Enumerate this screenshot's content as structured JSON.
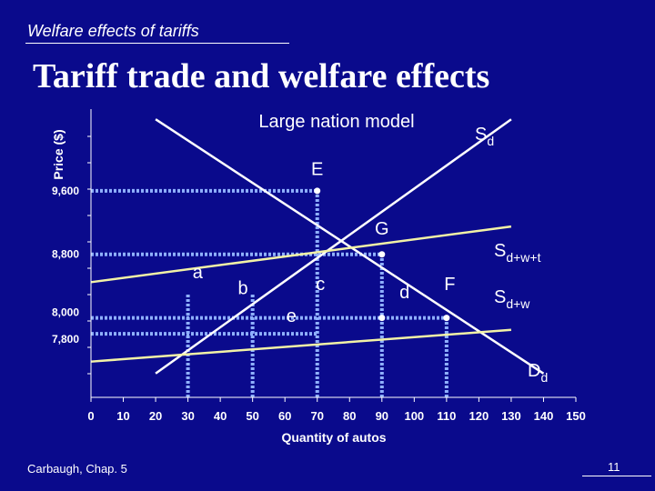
{
  "slide": {
    "header": "Welfare effects of tariffs",
    "title": "Tariff trade and welfare effects",
    "footer": "Carbaugh, Chap. 5",
    "page_number": "11"
  },
  "colors": {
    "background": "#0a0a8c",
    "curve_line": "#ffffff",
    "price_line": "#f2f2a6",
    "dotted_guides": "#8fb0ff",
    "text": "#ffffff"
  },
  "chart_data": {
    "type": "line",
    "title": "Large nation model",
    "xlabel": "Quantity of autos",
    "ylabel": "Price ($)",
    "xlim": [
      0,
      150
    ],
    "ylim": [
      7000,
      10800
    ],
    "x_ticks": [
      "0",
      "10",
      "20",
      "30",
      "40",
      "50",
      "60",
      "70",
      "80",
      "90",
      "100",
      "110",
      "120",
      "130",
      "140",
      "150"
    ],
    "y_tick_labels": [
      {
        "value": 9600,
        "label": "9,600"
      },
      {
        "value": 8800,
        "label": "8,800"
      },
      {
        "value": 8000,
        "label": "8,000"
      },
      {
        "value": 7800,
        "label": "7,800"
      }
    ],
    "series": [
      {
        "name": "Sd",
        "label_main": "S",
        "label_sub": "d",
        "points": [
          [
            20,
            7300
          ],
          [
            130,
            10500
          ]
        ]
      },
      {
        "name": "Dd",
        "label_main": "D",
        "label_sub": "d",
        "points": [
          [
            20,
            10500
          ],
          [
            140,
            7300
          ]
        ]
      },
      {
        "name": "Sd+w+t",
        "label_main": "S",
        "label_sub": "d+w+t",
        "points": [
          [
            0,
            8450
          ],
          [
            130,
            9150
          ]
        ]
      },
      {
        "name": "Sd+w",
        "label_main": "S",
        "label_sub": "d+w",
        "points": [
          [
            0,
            7450
          ],
          [
            130,
            7850
          ]
        ]
      }
    ],
    "guides": {
      "horizontal": [
        {
          "value": 9600,
          "x_to": 70
        },
        {
          "value": 8800,
          "x_to": 90
        },
        {
          "value": 8000,
          "x_to": 110
        },
        {
          "value": 7800,
          "x_to": 70
        }
      ],
      "vertical": [
        30,
        50,
        70,
        90,
        110
      ]
    },
    "points_marked": [
      {
        "x": 70,
        "y": 9600
      },
      {
        "x": 90,
        "y": 8800
      },
      {
        "x": 90,
        "y": 8000
      },
      {
        "x": 110,
        "y": 8000
      }
    ],
    "annotations": [
      {
        "text": "E",
        "x": 70,
        "y": 9800
      },
      {
        "text": "G",
        "x": 90,
        "y": 9050
      },
      {
        "text": "F",
        "x": 111,
        "y": 8350
      },
      {
        "text": "a",
        "x": 33,
        "y": 8500
      },
      {
        "text": "b",
        "x": 47,
        "y": 8300
      },
      {
        "text": "c",
        "x": 71,
        "y": 8350
      },
      {
        "text": "d",
        "x": 97,
        "y": 8250
      },
      {
        "text": "e",
        "x": 62,
        "y": 7950
      }
    ]
  }
}
